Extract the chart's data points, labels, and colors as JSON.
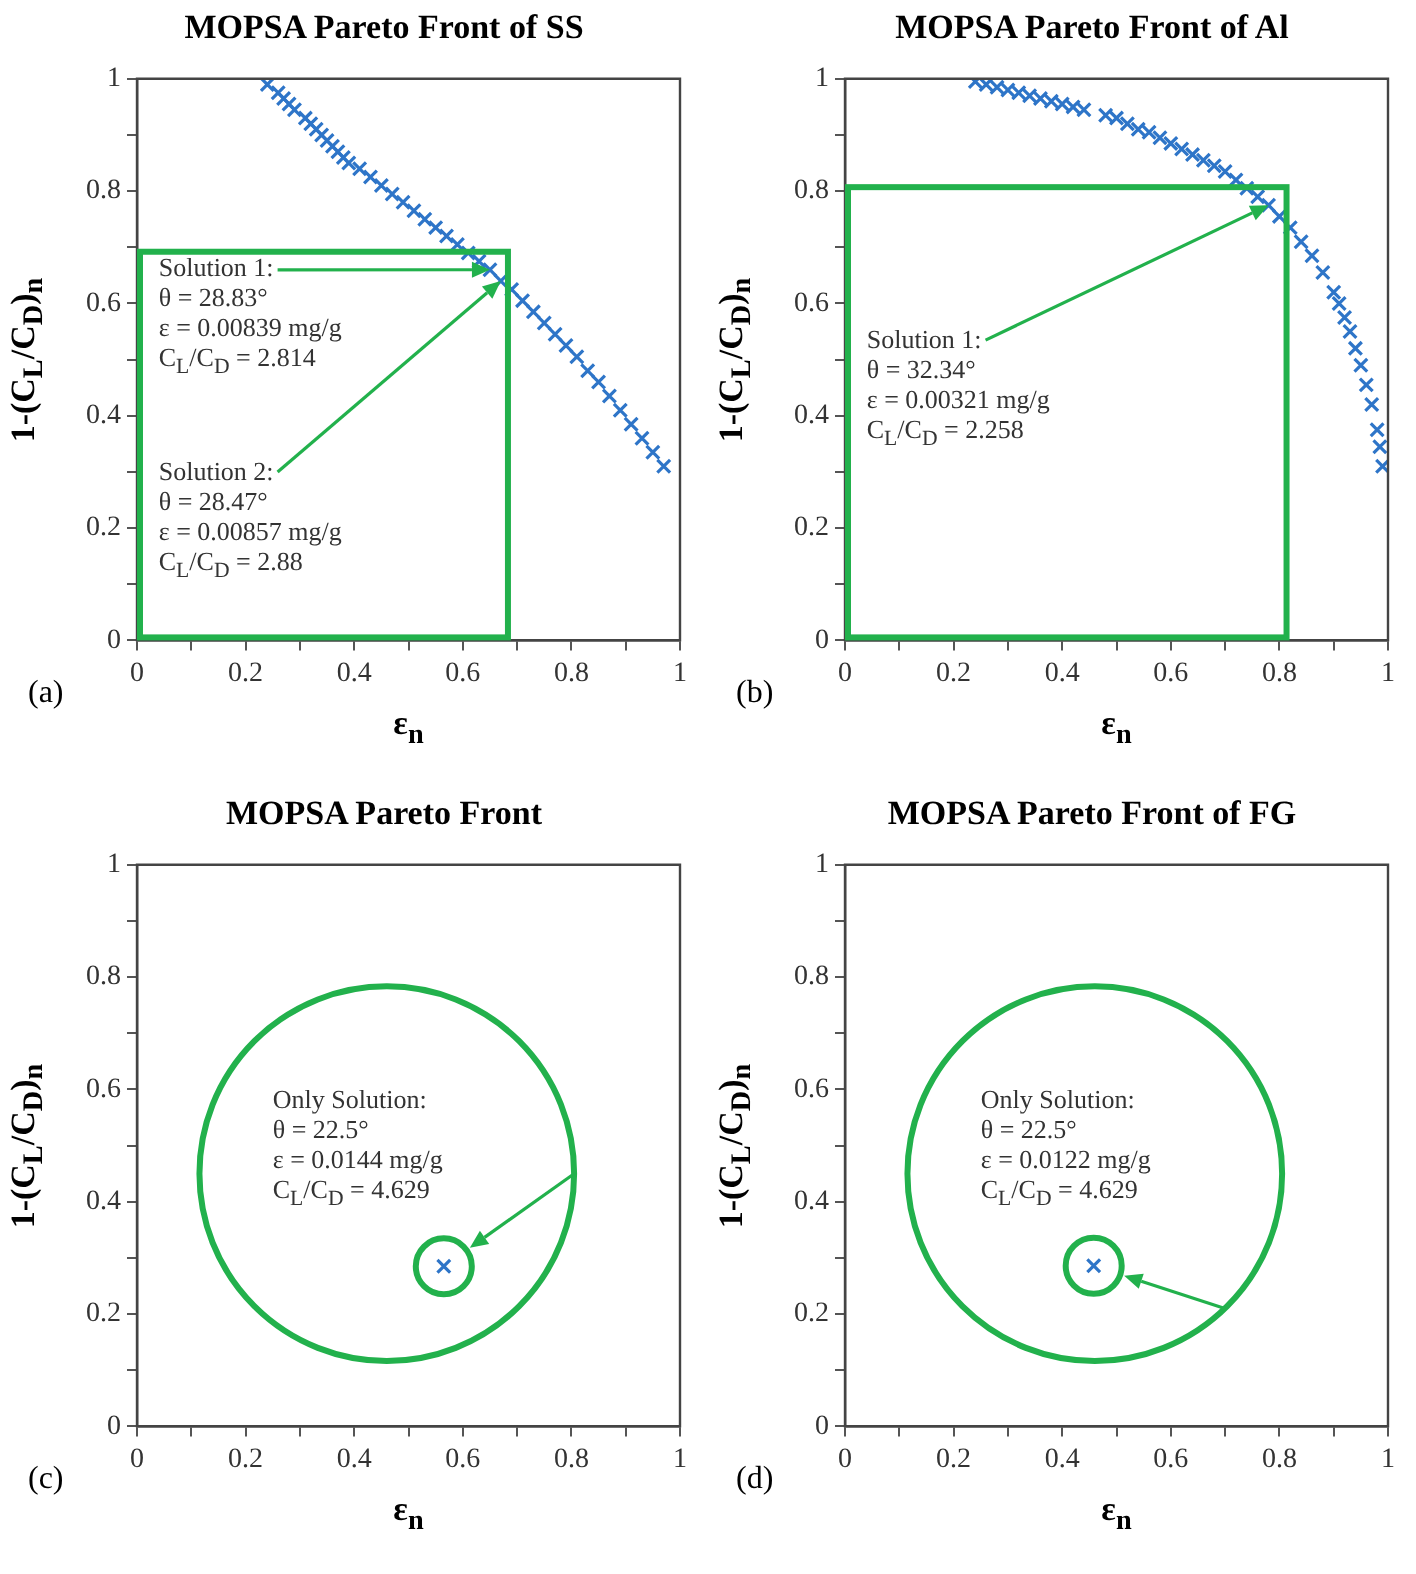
{
  "chart_data": [
    {
      "type": "scatter",
      "title": "MOPSA Pareto Front of SS",
      "xlabel": "ε$_{n}$",
      "ylabel": "1-(C$_{L}$/C$_{D}$)$_{n}$",
      "color": "#2e75c8",
      "marker": "cross",
      "xlim": [
        0,
        1
      ],
      "ylim": [
        0,
        1
      ],
      "xticks": [
        0,
        {
          "value": 0.1,
          "label": null
        },
        0.2,
        {
          "value": 0.3,
          "label": null
        },
        0.4,
        {
          "value": 0.5,
          "label": null
        },
        0.6,
        {
          "value": 0.7,
          "label": null
        },
        0.8,
        {
          "value": 0.9,
          "label": null
        },
        1
      ],
      "yticks": [
        0,
        {
          "value": 0.1,
          "label": null
        },
        0.2,
        {
          "value": 0.3,
          "label": null
        },
        0.4,
        {
          "value": 0.5,
          "label": null
        },
        0.6,
        {
          "value": 0.7,
          "label": null
        },
        0.8,
        {
          "value": 0.9,
          "label": null
        },
        1
      ],
      "x": [
        0.24,
        0.26,
        0.27,
        0.28,
        0.29,
        0.31,
        0.32,
        0.33,
        0.34,
        0.35,
        0.36,
        0.37,
        0.38,
        0.39,
        0.41,
        0.43,
        0.45,
        0.47,
        0.49,
        0.51,
        0.53,
        0.55,
        0.57,
        0.59,
        0.61,
        0.63,
        0.65,
        0.67,
        0.69,
        0.71,
        0.73,
        0.75,
        0.77,
        0.79,
        0.81,
        0.83,
        0.85,
        0.87,
        0.89,
        0.91,
        0.93,
        0.95,
        0.97
      ],
      "values": [
        0.99,
        0.975,
        0.965,
        0.955,
        0.945,
        0.93,
        0.92,
        0.91,
        0.9,
        0.89,
        0.88,
        0.87,
        0.86,
        0.85,
        0.84,
        0.825,
        0.81,
        0.795,
        0.78,
        0.765,
        0.75,
        0.735,
        0.72,
        0.705,
        0.69,
        0.675,
        0.66,
        0.64,
        0.625,
        0.605,
        0.585,
        0.565,
        0.545,
        0.525,
        0.505,
        0.48,
        0.46,
        0.435,
        0.41,
        0.385,
        0.36,
        0.335,
        0.31
      ],
      "annotations": [
        "(a)",
        {
          "text": "Solution 1:\nθ = 28.83°\nε = 0.00839 mg/g\nC$_{L}$/C$_{D}$ = 2.814",
          "x": 0.65,
          "y": 0.66
        },
        {
          "text": "Solution 2:\nθ = 28.47°\nε = 0.00857 mg/g\nC$_{L}$/C$_{D}$ = 2.88",
          "x": 0.67,
          "y": 0.64
        }
      ]
    },
    {
      "type": "scatter",
      "title": "MOPSA Pareto Front of Al",
      "xlabel": "ε$_{n}$",
      "ylabel": "1-(C$_{L}$/C$_{D}$)$_{n}$",
      "color": "#2e75c8",
      "marker": "cross",
      "xlim": [
        0,
        1
      ],
      "ylim": [
        0,
        1
      ],
      "xticks": [
        0,
        {
          "value": 0.1,
          "label": null
        },
        0.2,
        {
          "value": 0.3,
          "label": null
        },
        0.4,
        {
          "value": 0.5,
          "label": null
        },
        0.6,
        {
          "value": 0.7,
          "label": null
        },
        0.8,
        {
          "value": 0.9,
          "label": null
        },
        1
      ],
      "yticks": [
        0,
        {
          "value": 0.1,
          "label": null
        },
        0.2,
        {
          "value": 0.3,
          "label": null
        },
        0.4,
        {
          "value": 0.5,
          "label": null
        },
        0.6,
        {
          "value": 0.7,
          "label": null
        },
        0.8,
        {
          "value": 0.9,
          "label": null
        },
        1
      ],
      "x": [
        0.24,
        0.26,
        0.28,
        0.3,
        0.32,
        0.34,
        0.36,
        0.38,
        0.4,
        0.42,
        0.44,
        0.48,
        0.5,
        0.52,
        0.54,
        0.56,
        0.58,
        0.6,
        0.62,
        0.64,
        0.66,
        0.68,
        0.7,
        0.72,
        0.74,
        0.76,
        0.78,
        0.8,
        0.82,
        0.84,
        0.86,
        0.88,
        0.9,
        0.91,
        0.92,
        0.93,
        0.94,
        0.95,
        0.96,
        0.97,
        0.98,
        0.985,
        0.99
      ],
      "values": [
        0.995,
        0.99,
        0.985,
        0.98,
        0.975,
        0.97,
        0.965,
        0.96,
        0.955,
        0.95,
        0.945,
        0.935,
        0.93,
        0.92,
        0.91,
        0.905,
        0.895,
        0.885,
        0.875,
        0.865,
        0.855,
        0.845,
        0.835,
        0.82,
        0.805,
        0.79,
        0.775,
        0.755,
        0.735,
        0.71,
        0.685,
        0.655,
        0.62,
        0.6,
        0.575,
        0.55,
        0.52,
        0.49,
        0.455,
        0.42,
        0.375,
        0.345,
        0.31
      ],
      "annotations": [
        "(b)",
        {
          "text": "Solution 1:\nθ = 32.34°\nε = 0.00321 mg/g\nC$_{L}$/C$_{D}$ = 2.258",
          "x": 0.78,
          "y": 0.775
        }
      ]
    },
    {
      "type": "scatter",
      "title": "MOPSA Pareto Front",
      "xlabel": "ε$_{n}$",
      "ylabel": "1-(C$_{L}$/C$_{D}$)$_{n}$",
      "color": "#2e75c8",
      "marker": "cross",
      "xlim": [
        0,
        1
      ],
      "ylim": [
        0,
        1
      ],
      "xticks": [
        0,
        {
          "value": 0.1,
          "label": null
        },
        0.2,
        {
          "value": 0.3,
          "label": null
        },
        0.4,
        {
          "value": 0.5,
          "label": null
        },
        0.6,
        {
          "value": 0.7,
          "label": null
        },
        0.8,
        {
          "value": 0.9,
          "label": null
        },
        1
      ],
      "yticks": [
        0,
        {
          "value": 0.1,
          "label": null
        },
        0.2,
        {
          "value": 0.3,
          "label": null
        },
        0.4,
        {
          "value": 0.5,
          "label": null
        },
        0.6,
        {
          "value": 0.7,
          "label": null
        },
        0.8,
        {
          "value": 0.9,
          "label": null
        },
        1
      ],
      "x": [
        0.565
      ],
      "values": [
        0.285
      ],
      "annotations": [
        "(c)",
        {
          "text": "Only Solution:\nθ = 22.5°\nε = 0.0144 mg/g\nC$_{L}$/C$_{D}$ = 4.629",
          "x": 0.565,
          "y": 0.285
        }
      ]
    },
    {
      "type": "scatter",
      "title": "MOPSA Pareto Front of FG",
      "xlabel": "ε$_{n}$",
      "ylabel": "1-(C$_{L}$/C$_{D}$)$_{n}$",
      "color": "#2e75c8",
      "marker": "cross",
      "xlim": [
        0,
        1
      ],
      "ylim": [
        0,
        1
      ],
      "xticks": [
        0,
        {
          "value": 0.1,
          "label": null
        },
        0.2,
        {
          "value": 0.3,
          "label": null
        },
        0.4,
        {
          "value": 0.5,
          "label": null
        },
        0.6,
        {
          "value": 0.7,
          "label": null
        },
        0.8,
        {
          "value": 0.9,
          "label": null
        },
        1
      ],
      "yticks": [
        0,
        {
          "value": 0.1,
          "label": null
        },
        0.2,
        {
          "value": 0.3,
          "label": null
        },
        0.4,
        {
          "value": 0.5,
          "label": null
        },
        0.6,
        {
          "value": 0.7,
          "label": null
        },
        0.8,
        {
          "value": 0.9,
          "label": null
        },
        1
      ],
      "x": [
        0.458
      ],
      "values": [
        0.286
      ],
      "annotations": [
        "(d)",
        {
          "text": "Only Solution:\nθ = 22.5°\nε = 0.0122 mg/g\nC$_{L}$/C$_{D}$ = 4.629",
          "x": 0.458,
          "y": 0.286
        }
      ]
    }
  ]
}
